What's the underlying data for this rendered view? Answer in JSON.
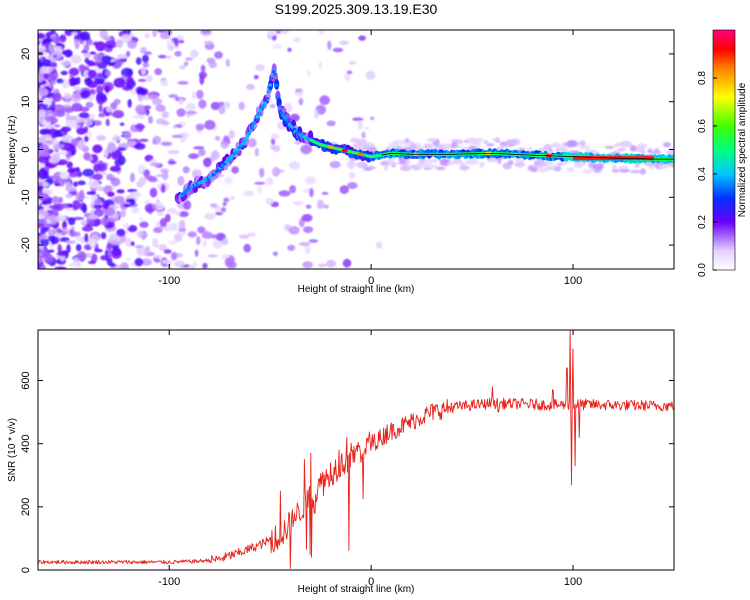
{
  "title": "S199.2025.309.13.19.E30",
  "colors": {
    "line": "#e8211a",
    "spec_low": "#9b4dff",
    "spec_mid": "#22e0d0",
    "spec_high": "#ff1a1a"
  },
  "chart_data": [
    {
      "type": "heatmap",
      "name": "spectrogram",
      "xlabel": "Height of straight line (km)",
      "ylabel": "Frequency (Hz)",
      "xlim": [
        -165,
        150
      ],
      "ylim": [
        -25,
        25
      ],
      "xticks": [
        {
          "value": -100,
          "label": "-100"
        },
        {
          "value": 0,
          "label": "0"
        },
        {
          "value": 100,
          "label": "100"
        }
      ],
      "yticks": [
        {
          "value": 20,
          "label": "20"
        },
        {
          "value": 10,
          "label": "10"
        },
        {
          "value": 0,
          "label": "0"
        },
        {
          "value": -10,
          "label": "-10"
        },
        {
          "value": -20,
          "label": "-20"
        }
      ],
      "colorbar": {
        "label": "Normalized spectral amplitude",
        "range": [
          0,
          1
        ],
        "ticks": [
          {
            "value": 0.0,
            "label": "0.0"
          },
          {
            "value": 0.2,
            "label": "0.2"
          },
          {
            "value": 0.4,
            "label": "0.4"
          },
          {
            "value": 0.6,
            "label": "0.6"
          },
          {
            "value": 0.8,
            "label": "0.8"
          }
        ]
      },
      "ridge_freq_hz": [
        [
          -95,
          -10
        ],
        [
          -90,
          -8
        ],
        [
          -80,
          -6
        ],
        [
          -70,
          -2
        ],
        [
          -62,
          2
        ],
        [
          -55,
          8
        ],
        [
          -52,
          10
        ],
        [
          -48,
          17
        ],
        [
          -45,
          8
        ],
        [
          -40,
          5
        ],
        [
          -35,
          3
        ],
        [
          -30,
          2
        ],
        [
          -25,
          1
        ],
        [
          -20,
          0.5
        ],
        [
          -10,
          -0.5
        ],
        [
          0,
          -1.5
        ],
        [
          10,
          -0.8
        ],
        [
          20,
          -1
        ],
        [
          40,
          -1
        ],
        [
          60,
          -0.8
        ],
        [
          80,
          -1.2
        ],
        [
          100,
          -1.5
        ],
        [
          120,
          -1.8
        ],
        [
          140,
          -2
        ],
        [
          150,
          -2
        ]
      ]
    },
    {
      "type": "line",
      "name": "snr",
      "xlabel": "Height of straight line (km)",
      "ylabel": "SNR (10 * v/v)",
      "xlim": [
        -165,
        150
      ],
      "ylim": [
        0,
        760
      ],
      "xticks": [
        {
          "value": -100,
          "label": "-100"
        },
        {
          "value": 0,
          "label": "0"
        },
        {
          "value": 100,
          "label": "100"
        }
      ],
      "yticks": [
        {
          "value": 0,
          "label": "0"
        },
        {
          "value": 200,
          "label": "200"
        },
        {
          "value": 400,
          "label": "400"
        },
        {
          "value": 600,
          "label": "600"
        }
      ],
      "trend": [
        [
          -165,
          25
        ],
        [
          -130,
          25
        ],
        [
          -100,
          25
        ],
        [
          -85,
          28
        ],
        [
          -75,
          35
        ],
        [
          -65,
          55
        ],
        [
          -55,
          80
        ],
        [
          -45,
          110
        ],
        [
          -38,
          160
        ],
        [
          -32,
          220
        ],
        [
          -25,
          270
        ],
        [
          -18,
          320
        ],
        [
          -10,
          360
        ],
        [
          0,
          400
        ],
        [
          10,
          440
        ],
        [
          20,
          470
        ],
        [
          30,
          500
        ],
        [
          40,
          515
        ],
        [
          50,
          522
        ],
        [
          60,
          528
        ],
        [
          80,
          525
        ],
        [
          90,
          522
        ],
        [
          100,
          525
        ],
        [
          120,
          522
        ],
        [
          140,
          520
        ],
        [
          150,
          520
        ]
      ],
      "spikes": [
        [
          -45,
          250
        ],
        [
          -40,
          5
        ],
        [
          -38,
          180
        ],
        [
          -33,
          350
        ],
        [
          -30,
          370
        ],
        [
          -28,
          180
        ],
        [
          -24,
          310
        ],
        [
          -20,
          340
        ],
        [
          -16,
          380
        ],
        [
          -12,
          420
        ],
        [
          -6,
          390
        ],
        [
          8,
          460
        ],
        [
          60,
          580
        ],
        [
          63,
          500
        ],
        [
          90,
          570
        ],
        [
          97,
          640
        ],
        [
          98.5,
          760
        ],
        [
          99.2,
          270
        ],
        [
          100,
          700
        ],
        [
          101,
          330
        ],
        [
          103,
          420
        ]
      ]
    }
  ]
}
